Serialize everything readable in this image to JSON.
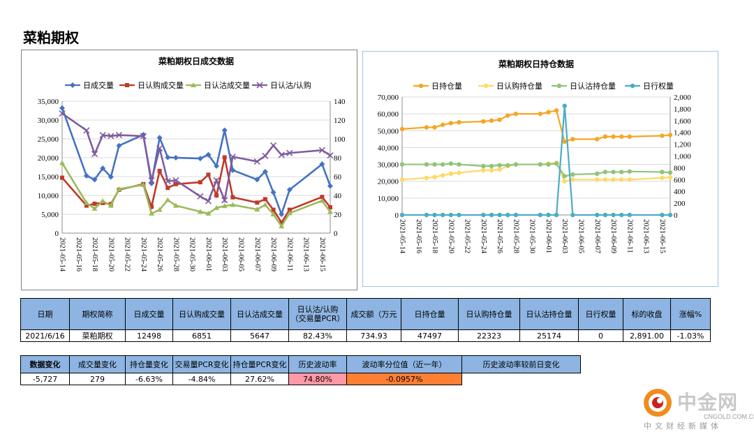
{
  "page": {
    "title": "菜粕期权"
  },
  "chart_data": [
    {
      "type": "line",
      "title": "菜粕期权日成交数据",
      "x": [
        "2021-05-14",
        "2021-05-17",
        "2021-05-18",
        "2021-05-19",
        "2021-05-20",
        "2021-05-21",
        "2021-05-24",
        "2021-05-25",
        "2021-05-26",
        "2021-05-27",
        "2021-05-28",
        "2021-05-31",
        "2021-06-01",
        "2021-06-02",
        "2021-06-03",
        "2021-06-04",
        "2021-06-07",
        "2021-06-08",
        "2021-06-09",
        "2021-06-10",
        "2021-06-11",
        "2021-06-15",
        "2021-06-16"
      ],
      "date_start": "2021-05-14",
      "day_offsets": [
        0,
        3,
        4,
        5,
        6,
        7,
        10,
        11,
        12,
        13,
        14,
        17,
        18,
        19,
        20,
        21,
        24,
        25,
        26,
        27,
        28,
        32,
        33
      ],
      "x_tick_labels": [
        "2021-05-14",
        "2021-05-16",
        "2021-05-18",
        "2021-05-20",
        "2021-05-22",
        "2021-05-24",
        "2021-05-26",
        "2021-05-28",
        "2021-05-30",
        "2021-06-01",
        "2021-06-03",
        "2021-06-05",
        "2021-06-07",
        "2021-06-09",
        "2021-06-11",
        "2021-06-13",
        "2021-06-15"
      ],
      "y_ticks_left": [
        "0",
        "5,000",
        "10,000",
        "15,000",
        "20,000",
        "25,000",
        "30,000",
        "35,000"
      ],
      "y_ticks_right": [
        "0",
        "20",
        "40",
        "60",
        "80",
        "100",
        "120",
        "140"
      ],
      "ylim_left": [
        0,
        35000
      ],
      "ylim_right": [
        0,
        140
      ],
      "legend_position": "top",
      "series": [
        {
          "name": "日成交量",
          "axis": "left",
          "color": "#4472c4",
          "marker": "diamond",
          "values": [
            33200,
            15200,
            14200,
            17200,
            14900,
            23200,
            26100,
            13200,
            25300,
            20100,
            20000,
            19800,
            20800,
            17800,
            27300,
            16700,
            14200,
            16300,
            10800,
            5000,
            11500,
            18300,
            12500
          ]
        },
        {
          "name": "日认购成交量",
          "axis": "left",
          "color": "#c0392b",
          "marker": "square",
          "values": [
            14700,
            7300,
            7800,
            8000,
            7700,
            11500,
            13000,
            7000,
            16500,
            12000,
            13000,
            13500,
            15500,
            10000,
            20100,
            9500,
            8100,
            9000,
            6200,
            2800,
            6200,
            9600,
            6851
          ]
        },
        {
          "name": "日认沽成交量",
          "axis": "left",
          "color": "#9bbb59",
          "marker": "triangle",
          "values": [
            18600,
            8000,
            6500,
            8500,
            7300,
            11700,
            12800,
            5200,
            6200,
            8800,
            7300,
            5700,
            5200,
            6700,
            7200,
            7500,
            6300,
            7500,
            5000,
            1800,
            5300,
            8600,
            5647
          ]
        },
        {
          "name": "日认沽/认购",
          "axis": "right",
          "color": "#7f5c9e",
          "marker": "x",
          "values": [
            127,
            109,
            84,
            104,
            103,
            104,
            103,
            56,
            90,
            55,
            56,
            39,
            34,
            56,
            35,
            81,
            76,
            82,
            93,
            83,
            85,
            88,
            82.43
          ]
        }
      ]
    },
    {
      "type": "line",
      "title": "菜粕期权日持仓数据",
      "x": [
        "2021-05-14",
        "2021-05-17",
        "2021-05-18",
        "2021-05-19",
        "2021-05-20",
        "2021-05-21",
        "2021-05-24",
        "2021-05-25",
        "2021-05-26",
        "2021-05-27",
        "2021-05-28",
        "2021-05-31",
        "2021-06-01",
        "2021-06-02",
        "2021-06-03",
        "2021-06-04",
        "2021-06-07",
        "2021-06-08",
        "2021-06-09",
        "2021-06-10",
        "2021-06-11",
        "2021-06-15",
        "2021-06-16"
      ],
      "date_start": "2021-05-14",
      "day_offsets": [
        0,
        3,
        4,
        5,
        6,
        7,
        10,
        11,
        12,
        13,
        14,
        17,
        18,
        19,
        20,
        21,
        24,
        25,
        26,
        27,
        28,
        32,
        33
      ],
      "x_tick_labels": [
        "2021-05-14",
        "2021-05-16",
        "2021-05-18",
        "2021-05-20",
        "2021-05-22",
        "2021-05-24",
        "2021-05-26",
        "2021-05-28",
        "2021-05-30",
        "2021-06-01",
        "2021-06-03",
        "2021-06-05",
        "2021-06-07",
        "2021-06-09",
        "2021-06-11",
        "2021-06-13",
        "2021-06-15"
      ],
      "y_ticks_left": [
        "0",
        "10,000",
        "20,000",
        "30,000",
        "40,000",
        "50,000",
        "60,000",
        "70,000"
      ],
      "y_ticks_right": [
        "0",
        "200",
        "400",
        "600",
        "800",
        "1,000",
        "1,200",
        "1,400",
        "1,600",
        "1,800",
        "2,000"
      ],
      "ylim_left": [
        0,
        70000
      ],
      "ylim_right": [
        0,
        2000
      ],
      "legend_position": "top",
      "series": [
        {
          "name": "日持仓量",
          "axis": "left",
          "color": "#f5a623",
          "marker": "circle",
          "values": [
            51000,
            52000,
            52000,
            53500,
            54500,
            55000,
            55500,
            56000,
            56500,
            59000,
            60000,
            60000,
            61000,
            62000,
            43500,
            45000,
            45000,
            46500,
            46500,
            46500,
            46500,
            47000,
            47497
          ]
        },
        {
          "name": "日认购持仓量",
          "axis": "left",
          "color": "#ffd966",
          "marker": "circle",
          "values": [
            21000,
            22000,
            22500,
            23500,
            24500,
            25000,
            26500,
            26500,
            27000,
            29000,
            30000,
            30000,
            30500,
            31000,
            20000,
            21000,
            21000,
            21000,
            21000,
            21000,
            21000,
            22000,
            22323
          ]
        },
        {
          "name": "日认沽持仓量",
          "axis": "left",
          "color": "#8fc47a",
          "marker": "circle",
          "values": [
            30000,
            30000,
            30000,
            30000,
            30500,
            30000,
            29000,
            29000,
            29500,
            29500,
            30000,
            30000,
            30000,
            30500,
            23000,
            24000,
            24500,
            25500,
            25500,
            25500,
            25800,
            25500,
            25174
          ]
        },
        {
          "name": "日行权量",
          "axis": "right",
          "color": "#4bacc6",
          "marker": "circle",
          "values": [
            0,
            0,
            0,
            0,
            0,
            0,
            0,
            0,
            0,
            0,
            0,
            0,
            0,
            0,
            1850,
            0,
            0,
            0,
            0,
            0,
            0,
            0,
            0
          ]
        }
      ]
    }
  ],
  "summary_table": {
    "headers": [
      "日期",
      "期权简称",
      "日成交量",
      "日认购成交量",
      "日认沽成交量",
      "日认沽/认购（交易量PCR）",
      "成交额（万元",
      "日持仓量",
      "日认购持仓量",
      "日认沽持仓量",
      "日行权量",
      "标的收盘",
      "涨幅%"
    ],
    "row": [
      "2021/6/16",
      "菜粕期权",
      "12498",
      "6851",
      "5647",
      "82.43%",
      "734.93",
      "47497",
      "22323",
      "25174",
      "0",
      "2,891.00",
      "-1.03%"
    ]
  },
  "change_table": {
    "row_label": "数据变化",
    "headers": [
      "成交量变化",
      "持仓量变化",
      "交易量PCR变化",
      "持仓量PCR变化",
      "历史波动率",
      "波动率分位值（近一年）",
      "历史波动率较前日变化"
    ],
    "row": [
      "-5,727",
      "279",
      "-6.63%",
      "-4.84%",
      "27.62%",
      "74.80%",
      "-0.0957%"
    ],
    "highlight_colors": {
      "percentile": "#ff99a6",
      "hv_change": "#ff7f33"
    }
  },
  "watermark": {
    "cn": "中金网",
    "en": "CNGOLD.COM.CN",
    "sub": "中文财经新媒体"
  }
}
